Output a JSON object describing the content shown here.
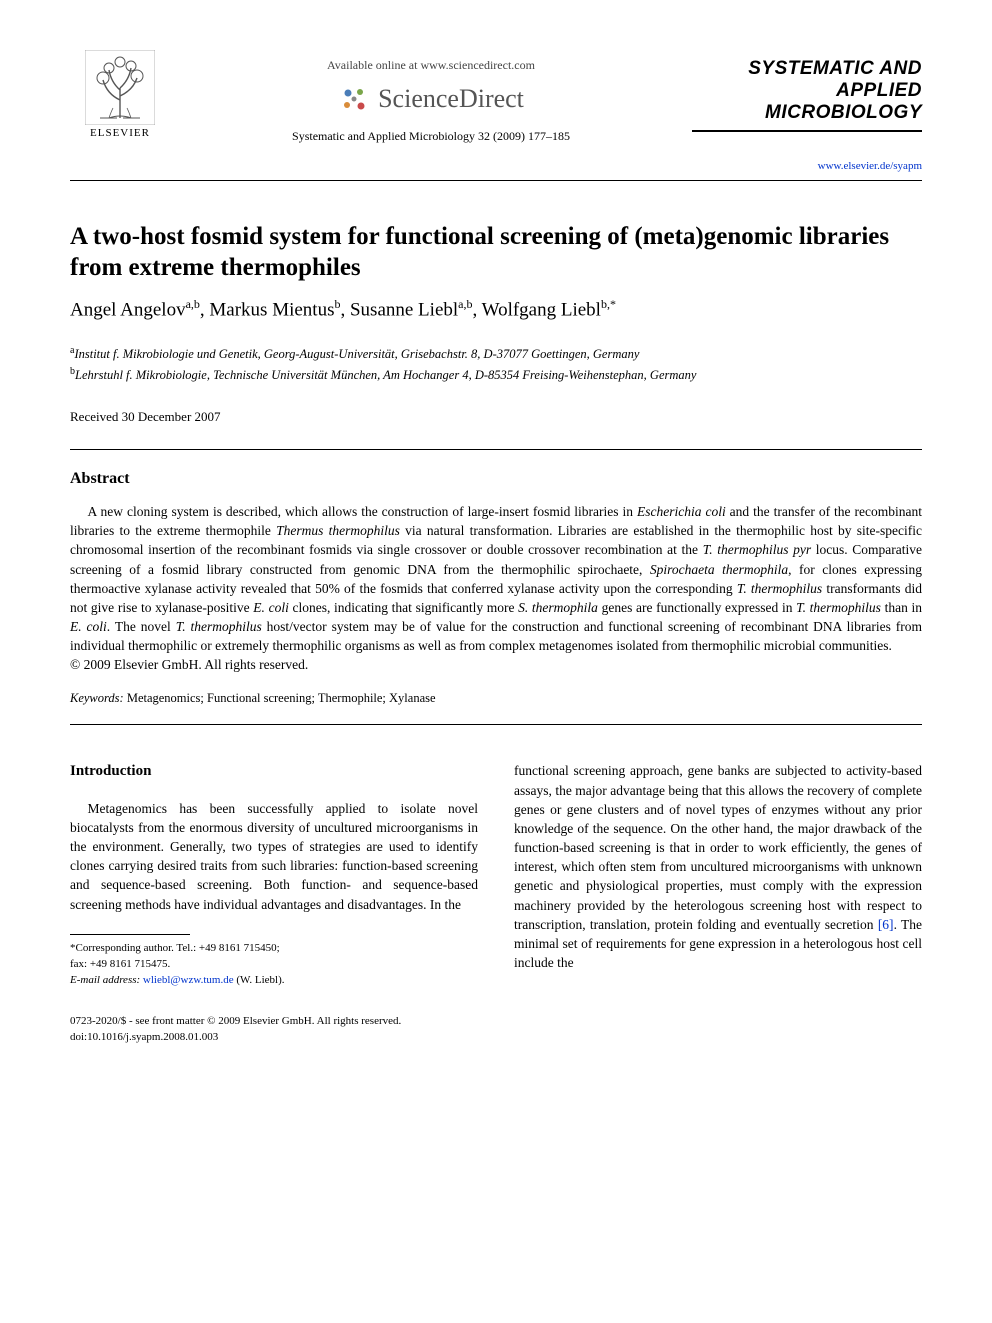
{
  "header": {
    "elsevier_label": "ELSEVIER",
    "available_text": "Available online at www.sciencedirect.com",
    "sciencedirect_text": "ScienceDirect",
    "journal_citation": "Systematic and Applied Microbiology 32 (2009) 177–185",
    "journal_name_line1": "SYSTEMATIC AND",
    "journal_name_line2": "APPLIED MICROBIOLOGY",
    "journal_url": "www.elsevier.de/syapm"
  },
  "article": {
    "title": "A two-host fosmid system for functional screening of (meta)genomic libraries from extreme thermophiles",
    "authors_html": "Angel Angelov<sup>a,b</sup>, Markus Mientus<sup>b</sup>, Susanne Liebl<sup>a,b</sup>, Wolfgang Liebl<sup>b,*</sup>",
    "affiliations": {
      "a": "Institut f. Mikrobiologie und Genetik, Georg-August-Universität, Grisebachstr. 8, D-37077 Goettingen, Germany",
      "b": "Lehrstuhl f. Mikrobiologie, Technische Universität München, Am Hochanger 4, D-85354 Freising-Weihenstephan, Germany"
    },
    "received": "Received 30 December 2007"
  },
  "abstract": {
    "heading": "Abstract",
    "body_html": "A new cloning system is described, which allows the construction of large-insert fosmid libraries in <em>Escherichia coli</em> and the transfer of the recombinant libraries to the extreme thermophile <em>Thermus thermophilus</em> via natural transformation. Libraries are established in the thermophilic host by site-specific chromosomal insertion of the recombinant fosmids via single crossover or double crossover recombination at the <em>T. thermophilus pyr</em> locus. Comparative screening of a fosmid library constructed from genomic DNA from the thermophilic spirochaete, <em>Spirochaeta thermophila</em>, for clones expressing thermoactive xylanase activity revealed that 50% of the fosmids that conferred xylanase activity upon the corresponding <em>T. thermophilus</em> transformants did not give rise to xylanase-positive <em>E. coli</em> clones, indicating that significantly more <em>S. thermophila</em> genes are functionally expressed in <em>T. thermophilus</em> than in <em>E. coli</em>. The novel <em>T. thermophilus</em> host/vector system may be of value for the construction and functional screening of recombinant DNA libraries from individual thermophilic or extremely thermophilic organisms as well as from complex metagenomes isolated from thermophilic microbial communities.",
    "copyright": "© 2009 Elsevier GmbH. All rights reserved.",
    "keywords_label": "Keywords:",
    "keywords_text": " Metagenomics; Functional screening; Thermophile; Xylanase"
  },
  "intro": {
    "heading": "Introduction",
    "col1_html": "Metagenomics has been successfully applied to isolate novel biocatalysts from the enormous diversity of uncultured microorganisms in the environment. Generally, two types of strategies are used to identify clones carrying desired traits from such libraries: function-based screening and sequence-based screening. Both function- and sequence-based screening methods have individual advantages and disadvantages. In the",
    "col2_html": "functional screening approach, gene banks are subjected to activity-based assays, the major advantage being that this allows the recovery of complete genes or gene clusters and of novel types of enzymes without any prior knowledge of the sequence. On the other hand, the major drawback of the function-based screening is that in order to work efficiently, the genes of interest, which often stem from uncultured microorganisms with unknown genetic and physiological properties, must comply with the expression machinery provided by the heterologous screening host with respect to transcription, translation, protein folding and eventually secretion <span class=\"ref-link\">[6]</span>. The minimal set of requirements for gene expression in a heterologous host cell include the"
  },
  "footnote": {
    "corr": "*Corresponding author. Tel.: +49 8161 715450;",
    "fax": "fax: +49 8161 715475.",
    "email_label": "E-mail address:",
    "email": "wliebl@wzw.tum.de",
    "email_who": " (W. Liebl)."
  },
  "bottom": {
    "line1": "0723-2020/$ - see front matter © 2009 Elsevier GmbH. All rights reserved.",
    "line2": "doi:10.1016/j.syapm.2008.01.003"
  },
  "colors": {
    "link": "#0033cc",
    "text": "#000000",
    "bg": "#ffffff"
  }
}
